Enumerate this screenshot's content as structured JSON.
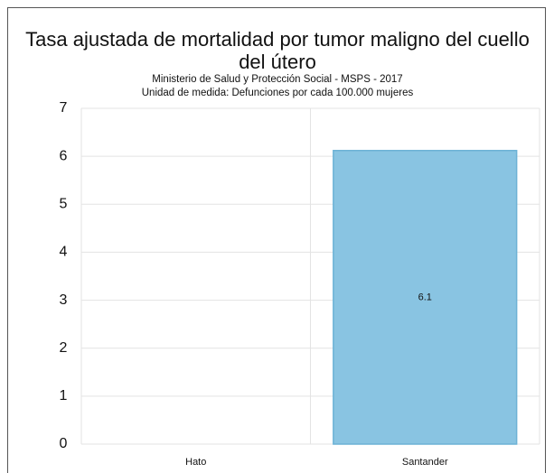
{
  "chart_data": {
    "type": "bar",
    "title": "Tasa ajustada de mortalidad por tumor maligno del cuello del útero",
    "subtitle": [
      "Ministerio de Salud y Protección Social - MSPS - 2017",
      "Unidad de medida: Defunciones por cada 100.000 mujeres"
    ],
    "categories": [
      "Hato",
      "Santander"
    ],
    "values": [
      0,
      6.12
    ],
    "value_labels": [
      null,
      "6.1"
    ],
    "color": "#89c4e2",
    "ylim": [
      0,
      7
    ],
    "yticks": [
      0,
      1,
      2,
      3,
      4,
      5,
      6,
      7
    ],
    "grid": true
  }
}
